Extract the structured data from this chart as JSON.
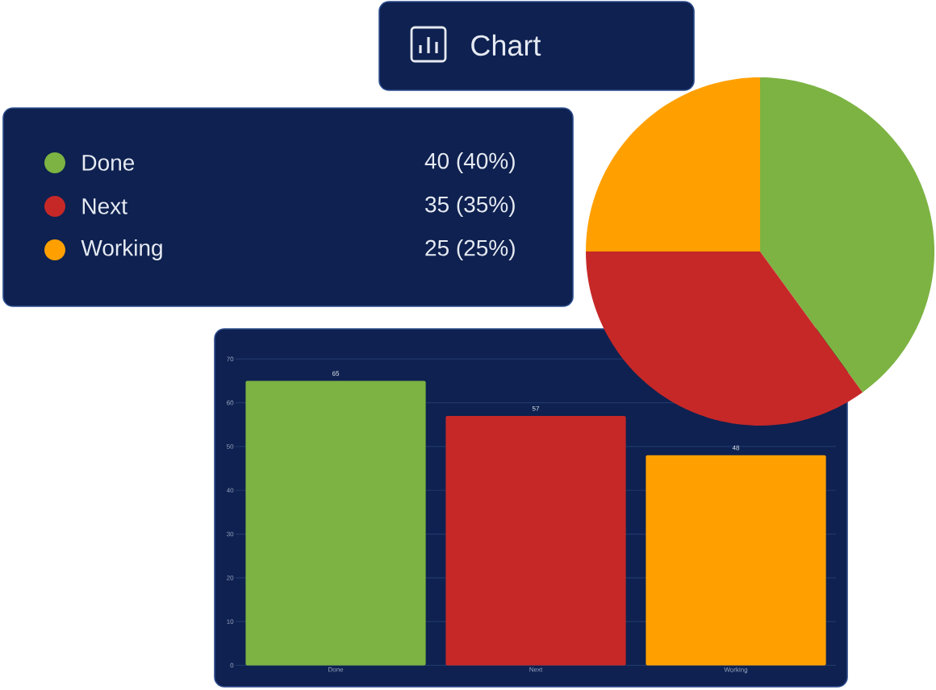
{
  "chart_data": [
    {
      "type": "pie",
      "title": "Chart",
      "categories": [
        "Done",
        "Next",
        "Working"
      ],
      "values": [
        40,
        35,
        25
      ],
      "colors": [
        "#7cb342",
        "#c62828",
        "#ffa000"
      ],
      "value_labels": [
        "40 (40%)",
        "35 (35%)",
        "25 (25%)"
      ],
      "legend": "left"
    },
    {
      "type": "bar",
      "categories": [
        "Done",
        "Next",
        "Working"
      ],
      "values": [
        65,
        57,
        48
      ],
      "colors": [
        "#7cb342",
        "#c62828",
        "#ffa000"
      ],
      "ylim": [
        0,
        70
      ],
      "yticks": [
        0,
        10,
        20,
        30,
        40,
        50,
        60,
        70
      ],
      "grid": "y",
      "data_labels": true
    }
  ]
}
